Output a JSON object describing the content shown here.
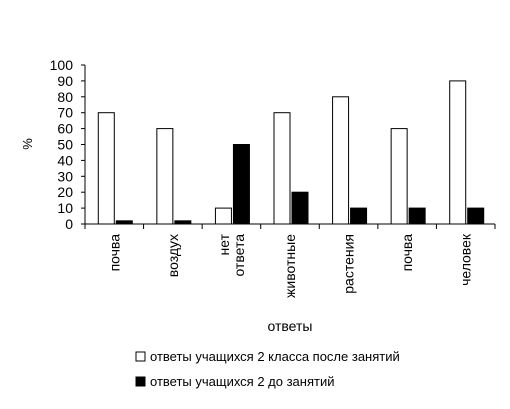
{
  "chart_data": {
    "type": "bar",
    "title": "",
    "xlabel": "ответы",
    "ylabel": "%",
    "ylim": [
      0,
      100
    ],
    "yticks": [
      0,
      10,
      20,
      30,
      40,
      50,
      60,
      70,
      80,
      90,
      100
    ],
    "categories": [
      "почва",
      "воздух",
      "нет ответа",
      "животные",
      "растения",
      "почва",
      "человек"
    ],
    "category_lines": [
      [
        "почва"
      ],
      [
        "воздух"
      ],
      [
        "нет",
        "ответа"
      ],
      [
        "животные"
      ],
      [
        "растения"
      ],
      [
        "почва"
      ],
      [
        "человек"
      ]
    ],
    "series": [
      {
        "name": "ответы учащихся 2 класса после занятий",
        "color": "#ffffff",
        "values": [
          70,
          60,
          10,
          70,
          80,
          60,
          90
        ]
      },
      {
        "name": "ответы учащихся 2 до занятий",
        "color": "#000000",
        "values": [
          2,
          2,
          50,
          20,
          10,
          10,
          10
        ]
      }
    ],
    "grid": false,
    "legend_position": "bottom"
  }
}
